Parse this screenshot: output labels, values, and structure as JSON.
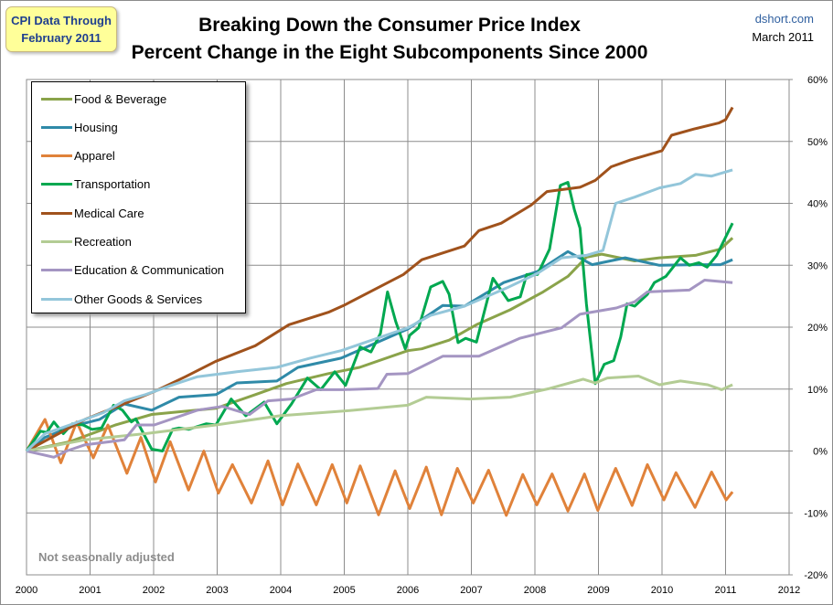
{
  "badge": {
    "line1": "CPI Data Through",
    "line2": "February 2011"
  },
  "site": {
    "name": "dshort.com",
    "date": "March 2011"
  },
  "note": "Not seasonally adjusted",
  "chart_data": {
    "type": "line",
    "title": "Breaking Down the Consumer Price Index",
    "subtitle": "Percent Change in the Eight Subcomponents Since 2000",
    "xlim": [
      2000,
      2012
    ],
    "ylim": [
      -20,
      60
    ],
    "x_ticks": [
      "2000",
      "2001",
      "2002",
      "2003",
      "2004",
      "2005",
      "2006",
      "2007",
      "2008",
      "2009",
      "2010",
      "2011",
      "2012"
    ],
    "y_ticks": [
      "60%",
      "50%",
      "40%",
      "30%",
      "20%",
      "10%",
      "0%",
      "-10%",
      "-20%"
    ],
    "y_axis_side": "right",
    "grid": true,
    "legend": "top-left",
    "series": [
      {
        "name": "Food & Beverage",
        "color": "#8aa34a",
        "points": [
          [
            2000,
            0
          ],
          [
            2000.68,
            1.5
          ],
          [
            2001.4,
            4.2
          ],
          [
            2001.97,
            5.9
          ],
          [
            2002.98,
            6.9
          ],
          [
            2003.6,
            9.1
          ],
          [
            2004.09,
            10.9
          ],
          [
            2004.75,
            12.5
          ],
          [
            2005.24,
            13.5
          ],
          [
            2006,
            16.2
          ],
          [
            2006.22,
            16.5
          ],
          [
            2006.65,
            17.9
          ],
          [
            2007.08,
            20.4
          ],
          [
            2007.61,
            22.8
          ],
          [
            2008.13,
            25.7
          ],
          [
            2008.52,
            28.2
          ],
          [
            2008.81,
            31.3
          ],
          [
            2009.05,
            31.8
          ],
          [
            2009.57,
            30.7
          ],
          [
            2009.96,
            31.2
          ],
          [
            2010.53,
            31.6
          ],
          [
            2010.92,
            32.6
          ],
          [
            2011.11,
            34.4
          ]
        ]
      },
      {
        "name": "Housing",
        "color": "#2f8aa8",
        "points": [
          [
            2000,
            0
          ],
          [
            2000.29,
            2.2
          ],
          [
            2000.72,
            4
          ],
          [
            2001.15,
            5.1
          ],
          [
            2001.54,
            7.6
          ],
          [
            2001.97,
            6.6
          ],
          [
            2002.4,
            8.7
          ],
          [
            2002.98,
            9.1
          ],
          [
            2003.31,
            11
          ],
          [
            2003.94,
            11.3
          ],
          [
            2004.27,
            13.5
          ],
          [
            2004.95,
            15
          ],
          [
            2006,
            19.7
          ],
          [
            2006.55,
            23.5
          ],
          [
            2006.89,
            23.4
          ],
          [
            2007.51,
            27.2
          ],
          [
            2008.04,
            29
          ],
          [
            2008.52,
            32.2
          ],
          [
            2008.9,
            30.1
          ],
          [
            2009.42,
            31.2
          ],
          [
            2009.96,
            30
          ],
          [
            2010.53,
            30.1
          ],
          [
            2010.92,
            30.1
          ],
          [
            2011.11,
            30.9
          ]
        ]
      },
      {
        "name": "Apparel",
        "color": "#e0823a",
        "points": [
          [
            2000,
            0
          ],
          [
            2000.29,
            5.1
          ],
          [
            2000.54,
            -1.9
          ],
          [
            2000.79,
            4.7
          ],
          [
            2001.05,
            -1.1
          ],
          [
            2001.28,
            4.2
          ],
          [
            2001.58,
            -3.6
          ],
          [
            2001.8,
            2.2
          ],
          [
            2002.03,
            -5
          ],
          [
            2002.26,
            1.5
          ],
          [
            2002.55,
            -6.3
          ],
          [
            2002.79,
            0
          ],
          [
            2003.02,
            -6.8
          ],
          [
            2003.24,
            -2.2
          ],
          [
            2003.54,
            -8.4
          ],
          [
            2003.8,
            -1.6
          ],
          [
            2004.03,
            -8.7
          ],
          [
            2004.27,
            -2.1
          ],
          [
            2004.56,
            -8.7
          ],
          [
            2004.81,
            -2.2
          ],
          [
            2005.04,
            -8.4
          ],
          [
            2005.25,
            -2.4
          ],
          [
            2005.54,
            -10.3
          ],
          [
            2005.8,
            -3.2
          ],
          [
            2006.03,
            -9.3
          ],
          [
            2006.29,
            -2.6
          ],
          [
            2006.53,
            -10.3
          ],
          [
            2006.78,
            -2.8
          ],
          [
            2007.03,
            -8.4
          ],
          [
            2007.27,
            -3.1
          ],
          [
            2007.55,
            -10.4
          ],
          [
            2007.81,
            -3.8
          ],
          [
            2008.03,
            -8.7
          ],
          [
            2008.27,
            -3.7
          ],
          [
            2008.52,
            -9.7
          ],
          [
            2008.78,
            -3.7
          ],
          [
            2008.99,
            -9.6
          ],
          [
            2009.27,
            -2.8
          ],
          [
            2009.53,
            -8.8
          ],
          [
            2009.77,
            -2.2
          ],
          [
            2010.03,
            -7.9
          ],
          [
            2010.22,
            -3.5
          ],
          [
            2010.52,
            -9.1
          ],
          [
            2010.78,
            -3.4
          ],
          [
            2011.01,
            -7.9
          ],
          [
            2011.11,
            -6.6
          ]
        ]
      },
      {
        "name": "Transportation",
        "color": "#00a850",
        "points": [
          [
            2000,
            0
          ],
          [
            2000.22,
            3.2
          ],
          [
            2000.32,
            3
          ],
          [
            2000.43,
            4.7
          ],
          [
            2000.58,
            2.8
          ],
          [
            2000.72,
            4.4
          ],
          [
            2000.89,
            4.2
          ],
          [
            2001.03,
            3.5
          ],
          [
            2001.18,
            3.7
          ],
          [
            2001.37,
            7.4
          ],
          [
            2001.51,
            6.6
          ],
          [
            2001.65,
            4.7
          ],
          [
            2001.72,
            5.2
          ],
          [
            2001.97,
            0.3
          ],
          [
            2002.14,
            0
          ],
          [
            2002.3,
            3.5
          ],
          [
            2002.4,
            3.7
          ],
          [
            2002.55,
            3.5
          ],
          [
            2002.83,
            4.4
          ],
          [
            2002.98,
            4.2
          ],
          [
            2003.22,
            8.4
          ],
          [
            2003.45,
            5.7
          ],
          [
            2003.74,
            7.9
          ],
          [
            2003.94,
            4.4
          ],
          [
            2004.17,
            7.6
          ],
          [
            2004.42,
            11.8
          ],
          [
            2004.63,
            9.9
          ],
          [
            2004.85,
            12.8
          ],
          [
            2005.02,
            10.6
          ],
          [
            2005.25,
            16.8
          ],
          [
            2005.42,
            16
          ],
          [
            2005.57,
            19
          ],
          [
            2005.68,
            25.7
          ],
          [
            2005.81,
            20.9
          ],
          [
            2005.96,
            16.5
          ],
          [
            2006.03,
            18.7
          ],
          [
            2006.17,
            19.9
          ],
          [
            2006.36,
            26.5
          ],
          [
            2006.55,
            27.4
          ],
          [
            2006.65,
            25.3
          ],
          [
            2006.79,
            17.5
          ],
          [
            2006.91,
            18.2
          ],
          [
            2007.08,
            17.6
          ],
          [
            2007.34,
            27.9
          ],
          [
            2007.58,
            24.3
          ],
          [
            2007.77,
            24.9
          ],
          [
            2007.87,
            28.5
          ],
          [
            2008.04,
            28.5
          ],
          [
            2008.23,
            32.6
          ],
          [
            2008.4,
            42.9
          ],
          [
            2008.52,
            43.4
          ],
          [
            2008.62,
            39
          ],
          [
            2008.71,
            36
          ],
          [
            2008.81,
            23.8
          ],
          [
            2008.95,
            10.9
          ],
          [
            2009.09,
            14
          ],
          [
            2009.24,
            14.6
          ],
          [
            2009.35,
            18.4
          ],
          [
            2009.45,
            23.8
          ],
          [
            2009.57,
            23.4
          ],
          [
            2009.77,
            25.3
          ],
          [
            2009.88,
            27.2
          ],
          [
            2010.06,
            28.2
          ],
          [
            2010.29,
            31.2
          ],
          [
            2010.43,
            30
          ],
          [
            2010.58,
            30.4
          ],
          [
            2010.71,
            29.7
          ],
          [
            2010.86,
            31.6
          ],
          [
            2011.11,
            36.8
          ]
        ]
      },
      {
        "name": "Medical Care",
        "color": "#a0521c",
        "points": [
          [
            2000,
            0
          ],
          [
            2000.92,
            5.1
          ],
          [
            2002.01,
            9.6
          ],
          [
            2002.5,
            12
          ],
          [
            2002.98,
            14.5
          ],
          [
            2003.6,
            17
          ],
          [
            2004.13,
            20.4
          ],
          [
            2004.75,
            22.4
          ],
          [
            2004.99,
            23.5
          ],
          [
            2005.61,
            26.8
          ],
          [
            2005.93,
            28.5
          ],
          [
            2006.22,
            30.9
          ],
          [
            2006.89,
            33.1
          ],
          [
            2007.12,
            35.6
          ],
          [
            2007.47,
            36.8
          ],
          [
            2007.94,
            39.7
          ],
          [
            2008.19,
            41.9
          ],
          [
            2008.71,
            42.6
          ],
          [
            2008.95,
            43.7
          ],
          [
            2009.2,
            45.9
          ],
          [
            2009.5,
            47
          ],
          [
            2010,
            48.5
          ],
          [
            2010.15,
            51
          ],
          [
            2010.5,
            52
          ],
          [
            2010.9,
            53
          ],
          [
            2011,
            53.5
          ],
          [
            2011.11,
            55.5
          ]
        ]
      },
      {
        "name": "Recreation",
        "color": "#b3cc94",
        "points": [
          [
            2000,
            0
          ],
          [
            2000.92,
            1.8
          ],
          [
            2001.87,
            2.8
          ],
          [
            2002.98,
            4.2
          ],
          [
            2003.99,
            5.7
          ],
          [
            2005.04,
            6.5
          ],
          [
            2006,
            7.4
          ],
          [
            2006.29,
            8.7
          ],
          [
            2006.98,
            8.4
          ],
          [
            2007.61,
            8.7
          ],
          [
            2008.23,
            10.1
          ],
          [
            2008.76,
            11.6
          ],
          [
            2008.95,
            11
          ],
          [
            2009.14,
            11.8
          ],
          [
            2009.63,
            12.1
          ],
          [
            2009.96,
            10.7
          ],
          [
            2010.29,
            11.3
          ],
          [
            2010.72,
            10.7
          ],
          [
            2010.94,
            9.9
          ],
          [
            2011.11,
            10.7
          ]
        ]
      },
      {
        "name": "Education & Communication",
        "color": "#a495c2",
        "points": [
          [
            2000,
            0
          ],
          [
            2000.43,
            -1
          ],
          [
            2000.63,
            0
          ],
          [
            2000.92,
            1
          ],
          [
            2001.54,
            1.8
          ],
          [
            2001.73,
            4.2
          ],
          [
            2002.01,
            4.2
          ],
          [
            2002.69,
            6.6
          ],
          [
            2003.08,
            7.2
          ],
          [
            2003.51,
            5.9
          ],
          [
            2003.8,
            8.1
          ],
          [
            2004.17,
            8.4
          ],
          [
            2004.56,
            9.9
          ],
          [
            2004.99,
            9.9
          ],
          [
            2005.53,
            10.1
          ],
          [
            2005.67,
            12.4
          ],
          [
            2006,
            12.5
          ],
          [
            2006.55,
            15.3
          ],
          [
            2007.12,
            15.3
          ],
          [
            2007.76,
            18.2
          ],
          [
            2008.42,
            19.9
          ],
          [
            2008.71,
            22.1
          ],
          [
            2009.28,
            23.1
          ],
          [
            2009.57,
            24.1
          ],
          [
            2009.77,
            25.7
          ],
          [
            2010.43,
            26
          ],
          [
            2010.67,
            27.6
          ],
          [
            2011.11,
            27.2
          ]
        ]
      },
      {
        "name": "Other Goods & Services",
        "color": "#93c6da",
        "points": [
          [
            2000,
            0
          ],
          [
            2000.29,
            2.8
          ],
          [
            2000.68,
            4.2
          ],
          [
            2001.21,
            6.2
          ],
          [
            2001.54,
            8.1
          ],
          [
            2001.87,
            9.1
          ],
          [
            2002.36,
            10.9
          ],
          [
            2002.69,
            12
          ],
          [
            2003.31,
            12.8
          ],
          [
            2003.94,
            13.5
          ],
          [
            2004.46,
            15
          ],
          [
            2004.95,
            16.2
          ],
          [
            2006,
            19.9
          ],
          [
            2006.36,
            21.9
          ],
          [
            2006.89,
            23.4
          ],
          [
            2007.55,
            26.3
          ],
          [
            2008.04,
            28.7
          ],
          [
            2008.42,
            31.2
          ],
          [
            2008.81,
            31.6
          ],
          [
            2009.07,
            32.4
          ],
          [
            2009.27,
            40
          ],
          [
            2009.57,
            41
          ],
          [
            2009.96,
            42.5
          ],
          [
            2010.29,
            43.2
          ],
          [
            2010.53,
            44.7
          ],
          [
            2010.78,
            44.4
          ],
          [
            2011.11,
            45.4
          ]
        ]
      }
    ]
  }
}
